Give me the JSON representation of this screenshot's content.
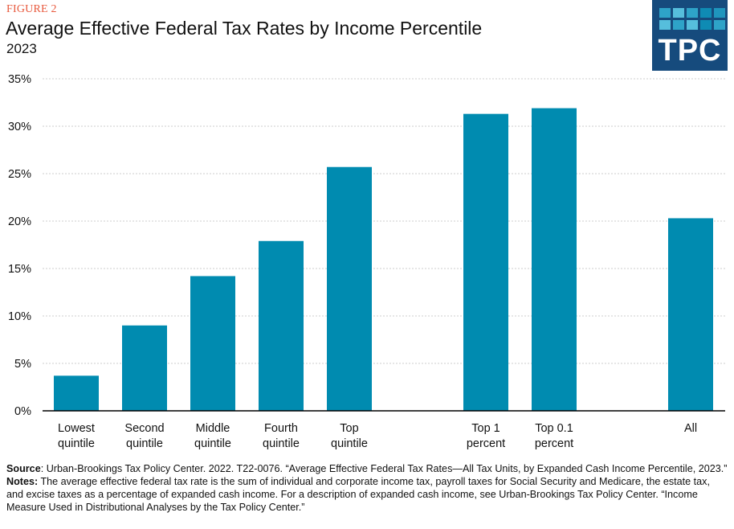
{
  "header": {
    "figure_label": "FIGURE 2",
    "title": "Average Effective Federal Tax Rates by Income Percentile",
    "subtitle": "2023"
  },
  "logo": {
    "text": "TPC",
    "background": "#164b7d",
    "tile_colors": [
      "#2ea3c8",
      "#56bedc",
      "#2ea3c8",
      "#0f8bb4",
      "#1f95bd",
      "#56bedc",
      "#2ea3c8",
      "#56bedc",
      "#0f8bb4",
      "#2ea3c8"
    ]
  },
  "colors": {
    "bar": "#008bb0",
    "figure_label": "#e8593d",
    "grid": "#cccccc"
  },
  "chart_data": {
    "type": "bar",
    "title": "Average Effective Federal Tax Rates by Income Percentile",
    "subtitle": "2023",
    "xlabel": "",
    "ylabel": "",
    "categories": [
      [
        "Lowest",
        "quintile"
      ],
      [
        "Second",
        "quintile"
      ],
      [
        "Middle",
        "quintile"
      ],
      [
        "Fourth",
        "quintile"
      ],
      [
        "Top",
        "quintile"
      ],
      [
        "Top 1",
        "percent"
      ],
      [
        "Top 0.1",
        "percent"
      ],
      [
        "All"
      ]
    ],
    "category_slots": [
      0,
      1,
      2,
      3,
      4,
      6,
      7,
      9
    ],
    "values": [
      3.7,
      9.0,
      14.2,
      17.9,
      25.7,
      31.3,
      31.9,
      20.3
    ],
    "value_unit": "%",
    "ylim": [
      0,
      35
    ],
    "yticks": [
      0,
      5,
      10,
      15,
      20,
      25,
      30,
      35
    ],
    "ytick_labels": [
      "0%",
      "5%",
      "10%",
      "15%",
      "20%",
      "25%",
      "30%",
      "35%"
    ],
    "grid": true,
    "legend": "none"
  },
  "footer": {
    "source_label": "Source",
    "source_text": ": Urban-Brookings Tax Policy Center. 2022. T22-0076. “Average Effective Federal Tax Rates—All Tax Units, by Expanded Cash Income Percentile, 2023.”",
    "notes_label": "Notes:",
    "notes_text": " The average effective federal tax rate is the sum of individual and corporate income tax, payroll taxes for Social Security and Medicare, the estate tax, and excise taxes as a percentage of expanded cash income. For a description of expanded cash income, see Urban-Brookings Tax Policy Center. “Income Measure Used in Distributional Analyses by the Tax Policy Center.”"
  }
}
